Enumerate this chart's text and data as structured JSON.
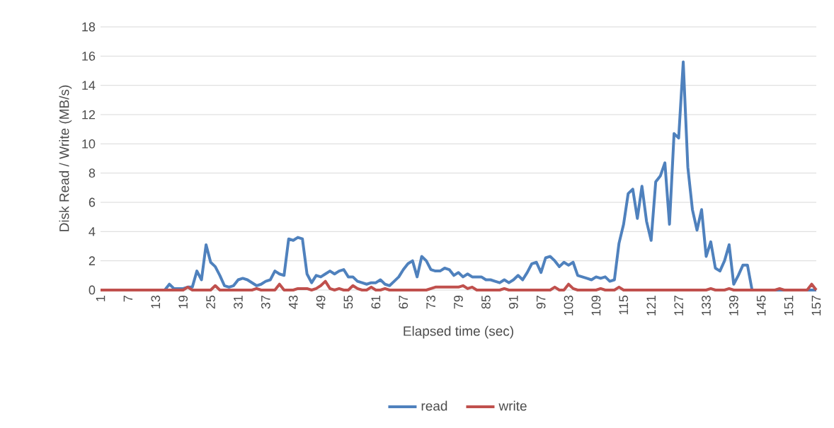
{
  "chart_data": {
    "type": "line",
    "xlabel": "Elapsed time (sec)",
    "ylabel": "Disk Read / Write (MB/s)",
    "categories": [
      "1",
      null,
      null,
      null,
      null,
      null,
      "7",
      null,
      null,
      null,
      null,
      null,
      "13",
      null,
      null,
      null,
      null,
      null,
      "19",
      null,
      null,
      null,
      null,
      null,
      "25",
      null,
      null,
      null,
      null,
      null,
      "31",
      null,
      null,
      null,
      null,
      null,
      "37",
      null,
      null,
      null,
      null,
      null,
      "43",
      null,
      null,
      null,
      null,
      null,
      "49",
      null,
      null,
      null,
      null,
      null,
      "55",
      null,
      null,
      null,
      null,
      null,
      "61",
      null,
      null,
      null,
      null,
      null,
      "67",
      null,
      null,
      null,
      null,
      null,
      "73",
      null,
      null,
      null,
      null,
      null,
      "79",
      null,
      null,
      null,
      null,
      null,
      "85",
      null,
      null,
      null,
      null,
      null,
      "91",
      null,
      null,
      null,
      null,
      null,
      "97",
      null,
      null,
      null,
      null,
      null,
      "103",
      null,
      null,
      null,
      null,
      null,
      "109",
      null,
      null,
      null,
      null,
      null,
      "115",
      null,
      null,
      null,
      null,
      null,
      "121",
      null,
      null,
      null,
      null,
      null,
      "127",
      null,
      null,
      null,
      null,
      null,
      "133",
      null,
      null,
      null,
      null,
      null,
      "139",
      null,
      null,
      null,
      null,
      null,
      "145",
      null,
      null,
      null,
      null,
      null,
      "151",
      null,
      null,
      null,
      null,
      null,
      "157"
    ],
    "series": [
      {
        "name": "read",
        "color": "#4f81bd",
        "values": [
          null,
          null,
          null,
          null,
          null,
          null,
          null,
          null,
          null,
          null,
          null,
          null,
          0,
          0,
          0,
          0.4,
          0.1,
          0.1,
          0.1,
          0.2,
          0.2,
          1.3,
          0.7,
          3.1,
          1.9,
          1.6,
          1.0,
          0.3,
          0.2,
          0.3,
          0.7,
          0.8,
          0.7,
          0.5,
          0.3,
          0.4,
          0.6,
          0.7,
          1.3,
          1.1,
          1.0,
          3.5,
          3.4,
          3.6,
          3.5,
          1.1,
          0.5,
          1.0,
          0.9,
          1.1,
          1.3,
          1.1,
          1.3,
          1.4,
          0.9,
          0.9,
          0.6,
          0.5,
          0.4,
          0.5,
          0.5,
          0.7,
          0.4,
          0.3,
          0.6,
          0.9,
          1.4,
          1.8,
          2.0,
          0.9,
          2.3,
          2.0,
          1.4,
          1.3,
          1.3,
          1.5,
          1.4,
          1.0,
          1.2,
          0.9,
          1.1,
          0.9,
          0.9,
          0.9,
          0.7,
          0.7,
          0.6,
          0.5,
          0.7,
          0.5,
          0.7,
          1.0,
          0.7,
          1.2,
          1.8,
          1.9,
          1.2,
          2.2,
          2.3,
          2.0,
          1.6,
          1.9,
          1.7,
          1.9,
          1.0,
          0.9,
          0.8,
          0.7,
          0.9,
          0.8,
          0.9,
          0.6,
          0.7,
          3.2,
          4.5,
          6.6,
          6.9,
          4.9,
          7.1,
          4.7,
          3.4,
          7.4,
          7.8,
          8.7,
          4.5,
          10.7,
          10.4,
          15.6,
          8.4,
          5.5,
          4.1,
          5.5,
          2.3,
          3.3,
          1.5,
          1.3,
          2.0,
          3.1,
          0.4,
          1.0,
          1.7,
          1.7,
          0,
          0,
          0,
          0,
          0,
          0,
          0,
          0,
          0,
          0,
          0,
          0,
          0,
          0,
          0
        ]
      },
      {
        "name": "write",
        "color": "#c0504d",
        "values": [
          0,
          0,
          0,
          0,
          0,
          0,
          0,
          0,
          0,
          0,
          0,
          0,
          0,
          0,
          0,
          0,
          0,
          0,
          0,
          0.2,
          0,
          0,
          0,
          0,
          0,
          0.3,
          0,
          0,
          0,
          0,
          0,
          0,
          0,
          0,
          0.1,
          0,
          0,
          0,
          0,
          0.4,
          0,
          0,
          0,
          0.1,
          0.1,
          0.1,
          0,
          0.1,
          0.3,
          0.6,
          0.1,
          0,
          0.1,
          0,
          0,
          0.3,
          0.1,
          0,
          0,
          0.2,
          0,
          0,
          0.1,
          0,
          0,
          0,
          0,
          0,
          0,
          0,
          0,
          0,
          0.1,
          0.2,
          0.2,
          0.2,
          0.2,
          0.2,
          0.2,
          0.3,
          0.1,
          0.2,
          0,
          0,
          0,
          0,
          0,
          0,
          0.1,
          0,
          0,
          0,
          0,
          0,
          0,
          0,
          0,
          0,
          0,
          0.2,
          0,
          0,
          0.4,
          0.1,
          0,
          0,
          0,
          0,
          0,
          0.1,
          0,
          0,
          0,
          0.2,
          0,
          0,
          0,
          0,
          0,
          0,
          0,
          0,
          0,
          0,
          0,
          0,
          0,
          0,
          0,
          0,
          0,
          0,
          0,
          0.1,
          0,
          0,
          0,
          0.1,
          0,
          0,
          0,
          0,
          0,
          0,
          0,
          0,
          0,
          0,
          0.1,
          0,
          0,
          0,
          0,
          0,
          0,
          0.4,
          0
        ]
      }
    ],
    "ylim": [
      0,
      18
    ],
    "yticks": [
      0,
      2,
      4,
      6,
      8,
      10,
      12,
      14,
      16,
      18
    ],
    "grid": "y",
    "legend": "bottom"
  }
}
